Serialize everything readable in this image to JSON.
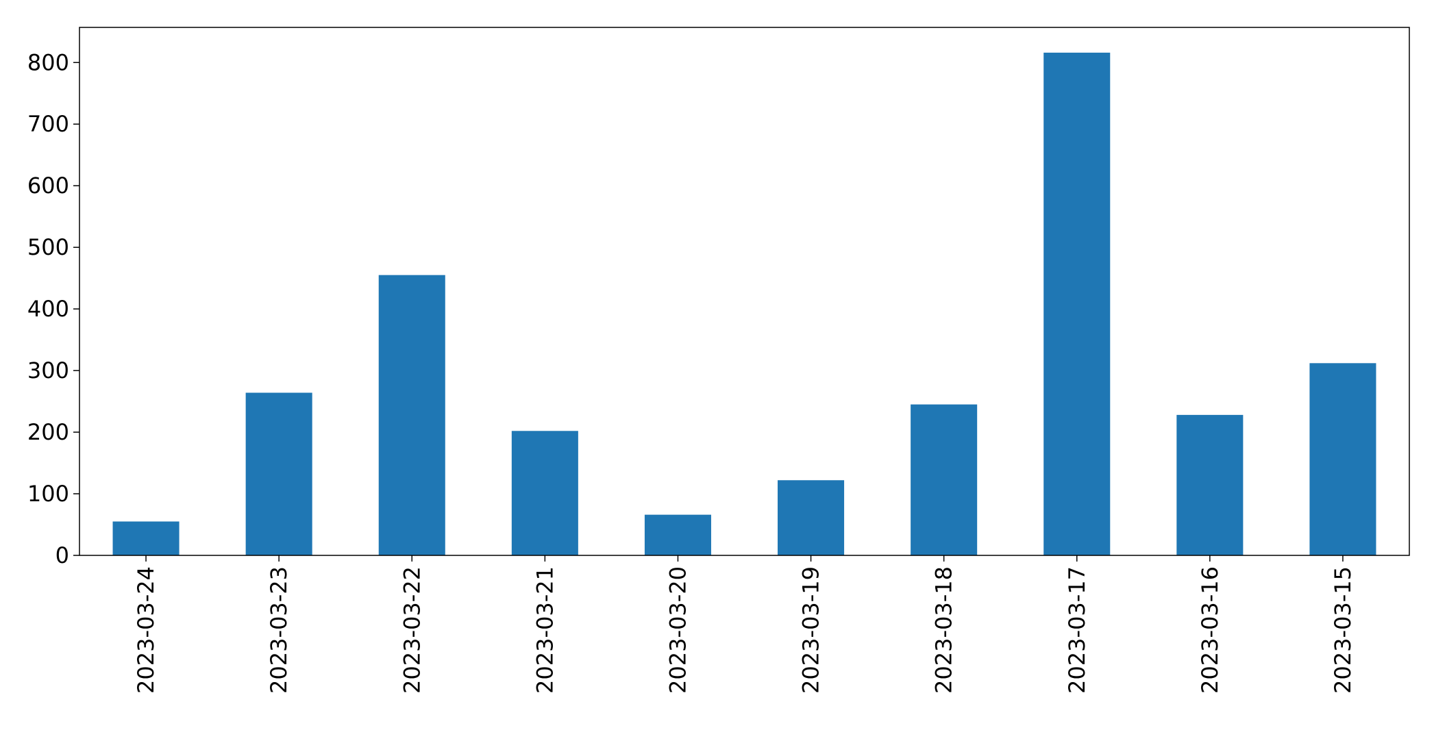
{
  "colors": {
    "bar": "#1f77b4",
    "axis": "#000000",
    "background": "#ffffff"
  },
  "chart_data": {
    "type": "bar",
    "title": "",
    "xlabel": "",
    "ylabel": "",
    "categories": [
      "2023-03-24",
      "2023-03-23",
      "2023-03-22",
      "2023-03-21",
      "2023-03-20",
      "2023-03-19",
      "2023-03-18",
      "2023-03-17",
      "2023-03-16",
      "2023-03-15"
    ],
    "values": [
      55,
      264,
      455,
      202,
      66,
      122,
      245,
      816,
      228,
      312
    ],
    "ylim": [
      0,
      857
    ],
    "yticks": [
      0,
      100,
      200,
      300,
      400,
      500,
      600,
      700,
      800
    ],
    "grid": false,
    "legend": "none"
  }
}
